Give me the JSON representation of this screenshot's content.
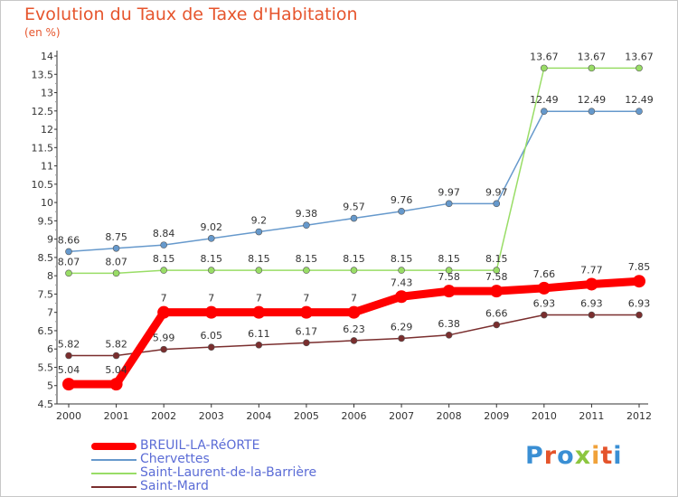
{
  "header": {
    "title": "Evolution du Taux de Taxe d'Habitation",
    "subtitle": "(en %)"
  },
  "logo": {
    "text": "Proxiti",
    "colors": [
      "#3a8fd4",
      "#e4542b",
      "#3a8fd4",
      "#8cc63f",
      "#f0a23a",
      "#e4542b"
    ]
  },
  "chart_data": {
    "type": "line",
    "x": [
      "2000",
      "2001",
      "2002",
      "2003",
      "2004",
      "2005",
      "2006",
      "2007",
      "2008",
      "2009",
      "2010",
      "2011",
      "2012"
    ],
    "ylim": [
      4.5,
      14
    ],
    "yticks": [
      "4.5",
      "5",
      "5.5",
      "6",
      "6.5",
      "7",
      "7.5",
      "8",
      "8.5",
      "9",
      "9.5",
      "10",
      "10.5",
      "11",
      "11.5",
      "12",
      "12.5",
      "13",
      "13.5",
      "14"
    ],
    "title": "Evolution du Taux de Taxe d'Habitation",
    "subtitle": "(en %)",
    "grid": false,
    "legend_position": "bottom-left",
    "series": [
      {
        "name": "BREUIL-LA-RéORTE",
        "color": "#ff0000",
        "values": [
          5.04,
          5.04,
          7,
          7,
          7,
          7,
          7,
          7.43,
          7.58,
          7.58,
          7.66,
          7.77,
          7.85
        ],
        "labels": [
          "5.04",
          "5.04",
          "7",
          "7",
          "7",
          "7",
          "7",
          "7.43",
          "7.58",
          "7.58",
          "7.66",
          "7.77",
          "7.85"
        ]
      },
      {
        "name": "Chervettes",
        "color": "#6699cc",
        "values": [
          8.66,
          8.75,
          8.84,
          9.02,
          9.2,
          9.38,
          9.57,
          9.76,
          9.97,
          9.97,
          12.49,
          12.49,
          12.49
        ],
        "labels": [
          "8.66",
          "8.75",
          "8.84",
          "9.02",
          "9.2",
          "9.38",
          "9.57",
          "9.76",
          "9.97",
          "9.97",
          "12.49",
          "12.49",
          "12.49"
        ]
      },
      {
        "name": "Saint-Laurent-de-la-Barrière",
        "color": "#99dd66",
        "values": [
          8.07,
          8.07,
          8.15,
          8.15,
          8.15,
          8.15,
          8.15,
          8.15,
          8.15,
          8.15,
          13.67,
          13.67,
          13.67
        ],
        "labels": [
          "8.07",
          "8.07",
          "8.15",
          "8.15",
          "8.15",
          "8.15",
          "8.15",
          "8.15",
          "8.15",
          "8.15",
          "13.67",
          "13.67",
          "13.67"
        ]
      },
      {
        "name": "Saint-Mard",
        "color": "#7a2e2e",
        "values": [
          5.82,
          5.82,
          5.99,
          6.05,
          6.11,
          6.17,
          6.23,
          6.29,
          6.38,
          6.66,
          6.93,
          6.93,
          6.93
        ],
        "labels": [
          "5.82",
          "5.82",
          "5.99",
          "6.05",
          "6.11",
          "6.17",
          "6.23",
          "6.29",
          "6.38",
          "6.66",
          "6.93",
          "6.93",
          "6.93"
        ]
      }
    ]
  }
}
